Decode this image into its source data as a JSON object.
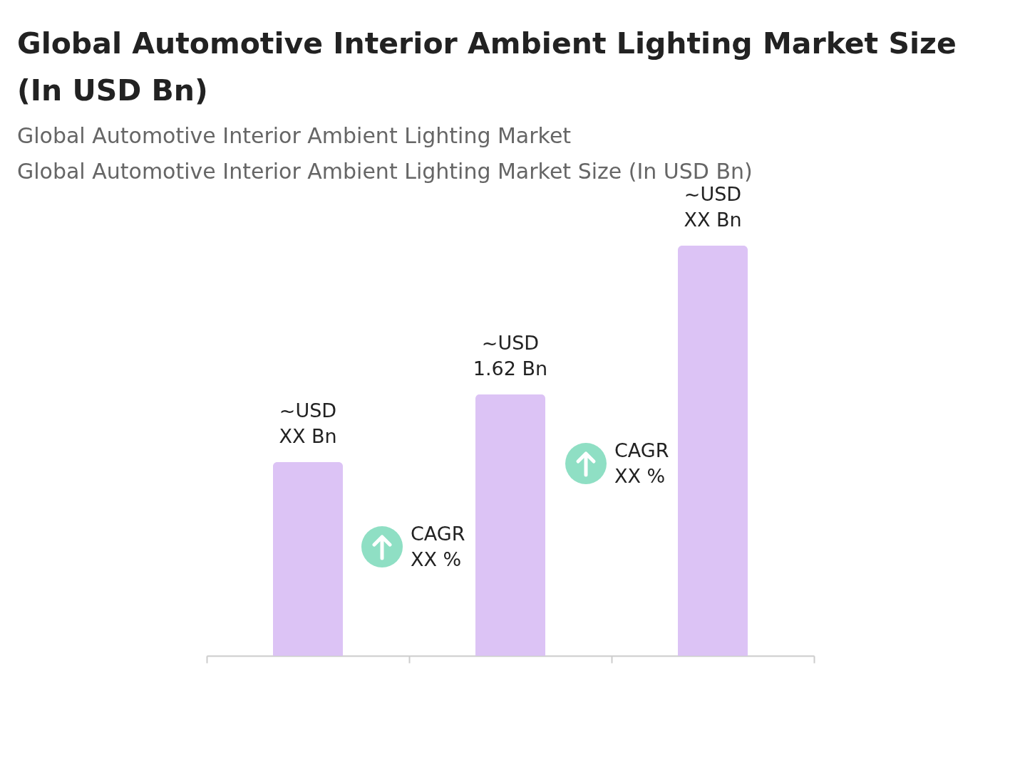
{
  "chart_data": {
    "type": "bar",
    "title": "Global Automotive Interior Ambient Lighting Market Size (In USD Bn)",
    "subtitle": "Global Automotive Interior Ambient Lighting Market\nGlobal Automotive Interior Ambient Lighting Market Size (In USD Bn)",
    "categories": [
      null,
      null,
      null
    ],
    "values": [
      1.2,
      1.62,
      2.54
    ],
    "color": "#dcc3f5",
    "value_labels": [
      "~USD XX Bn",
      "~USD 1.62 Bn",
      "~USD XX Bn"
    ],
    "annotations": [
      "CAGR XX %",
      "CAGR XX %"
    ]
  }
}
